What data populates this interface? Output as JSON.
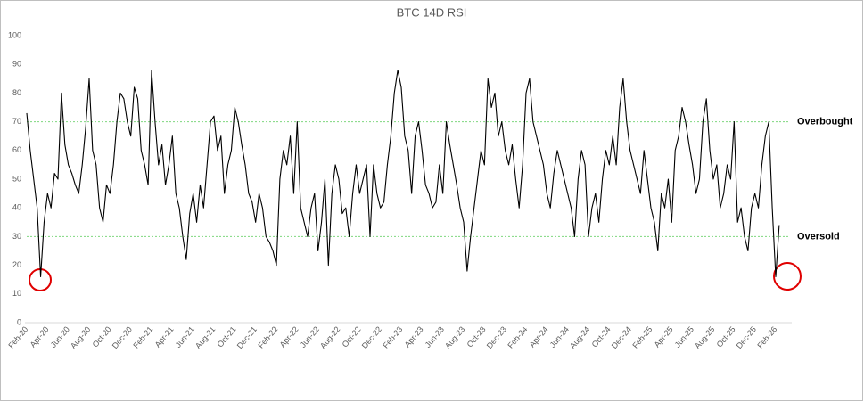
{
  "chart_data": {
    "type": "line",
    "title": "BTC 14D RSI",
    "categories": [
      "Feb-20",
      null,
      null,
      null,
      null,
      null,
      "Apr-20",
      null,
      null,
      null,
      null,
      null,
      "Jun-20",
      null,
      null,
      null,
      null,
      null,
      "Aug-20",
      null,
      null,
      null,
      null,
      null,
      "Oct-20",
      null,
      null,
      null,
      null,
      null,
      "Dec-20",
      null,
      null,
      null,
      null,
      null,
      "Feb-21",
      null,
      null,
      null,
      null,
      null,
      "Apr-21",
      null,
      null,
      null,
      null,
      null,
      "Jun-21",
      null,
      null,
      null,
      null,
      null,
      "Aug-21",
      null,
      null,
      null,
      null,
      null,
      "Oct-21",
      null,
      null,
      null,
      null,
      null,
      "Dec-21",
      null,
      null,
      null,
      null,
      null,
      "Feb-22",
      null,
      null,
      null,
      null,
      null,
      "Apr-22",
      null,
      null,
      null,
      null,
      null,
      "Jun-22",
      null,
      null,
      null,
      null,
      null,
      "Aug-22",
      null,
      null,
      null,
      null,
      null,
      "Oct-22",
      null,
      null,
      null,
      null,
      null,
      "Dec-22",
      null,
      null,
      null,
      null,
      null,
      "Feb-23",
      null,
      null,
      null,
      null,
      null,
      "Apr-23",
      null,
      null,
      null,
      null,
      null,
      "Jun-23",
      null,
      null,
      null,
      null,
      null,
      "Aug-23",
      null,
      null,
      null,
      null,
      null,
      "Oct-23",
      null,
      null,
      null,
      null,
      null,
      "Dec-23",
      null,
      null,
      null,
      null,
      null,
      "Feb-24",
      null,
      null,
      null,
      null,
      null,
      "Apr-24",
      null,
      null,
      null,
      null,
      null,
      "Jun-24",
      null,
      null,
      null,
      null,
      null,
      "Aug-24",
      null,
      null,
      null,
      null,
      null,
      "Oct-24",
      null,
      null,
      null,
      null,
      null,
      "Dec-24",
      null,
      null,
      null,
      null,
      null,
      "Feb-25",
      null,
      null,
      null,
      null,
      null,
      "Apr-25",
      null,
      null,
      null,
      null,
      null,
      "Jun-25",
      null,
      null,
      null,
      null,
      null,
      "Aug-25",
      null,
      null,
      null,
      null,
      null,
      "Oct-25",
      null,
      null,
      null,
      null,
      null,
      "Dec-25",
      null,
      null,
      null,
      null,
      null,
      "Feb-26",
      null
    ],
    "series": [
      {
        "name": "BTC 14D RSI",
        "color": "#000000",
        "values": [
          73,
          60,
          50,
          40,
          16,
          35,
          45,
          40,
          52,
          50,
          80,
          62,
          55,
          52,
          48,
          45,
          55,
          68,
          85,
          60,
          55,
          40,
          35,
          48,
          45,
          55,
          70,
          80,
          78,
          70,
          65,
          82,
          78,
          60,
          55,
          48,
          88,
          70,
          55,
          62,
          48,
          55,
          65,
          45,
          40,
          30,
          22,
          38,
          45,
          35,
          48,
          40,
          55,
          70,
          72,
          60,
          65,
          45,
          55,
          60,
          75,
          70,
          62,
          55,
          45,
          42,
          35,
          45,
          40,
          30,
          28,
          25,
          20,
          50,
          60,
          55,
          65,
          45,
          70,
          40,
          35,
          30,
          40,
          45,
          25,
          35,
          50,
          20,
          45,
          55,
          50,
          38,
          40,
          30,
          45,
          55,
          45,
          50,
          55,
          30,
          55,
          45,
          40,
          42,
          55,
          65,
          80,
          88,
          82,
          65,
          60,
          45,
          65,
          70,
          60,
          48,
          45,
          40,
          42,
          55,
          45,
          70,
          62,
          55,
          48,
          40,
          35,
          18,
          30,
          40,
          50,
          60,
          55,
          85,
          75,
          80,
          65,
          70,
          60,
          55,
          62,
          50,
          40,
          55,
          80,
          85,
          70,
          65,
          60,
          55,
          45,
          40,
          52,
          60,
          55,
          50,
          45,
          40,
          30,
          50,
          60,
          55,
          30,
          40,
          45,
          35,
          50,
          60,
          55,
          65,
          55,
          75,
          85,
          70,
          60,
          55,
          50,
          45,
          60,
          50,
          40,
          35,
          25,
          45,
          40,
          50,
          35,
          60,
          65,
          75,
          70,
          62,
          55,
          45,
          50,
          70,
          78,
          60,
          50,
          55,
          40,
          45,
          55,
          50,
          70,
          35,
          40,
          30,
          25,
          40,
          45,
          40,
          55,
          65,
          70,
          40,
          16,
          34
        ]
      }
    ],
    "ylim": [
      0,
      100
    ],
    "yticks": [
      0,
      10,
      20,
      30,
      40,
      50,
      60,
      70,
      80,
      90,
      100
    ],
    "reference_lines": [
      {
        "value": 70,
        "label": "Overbought",
        "color": "#7fd87f"
      },
      {
        "value": 30,
        "label": "Oversold",
        "color": "#7fd87f"
      }
    ]
  }
}
